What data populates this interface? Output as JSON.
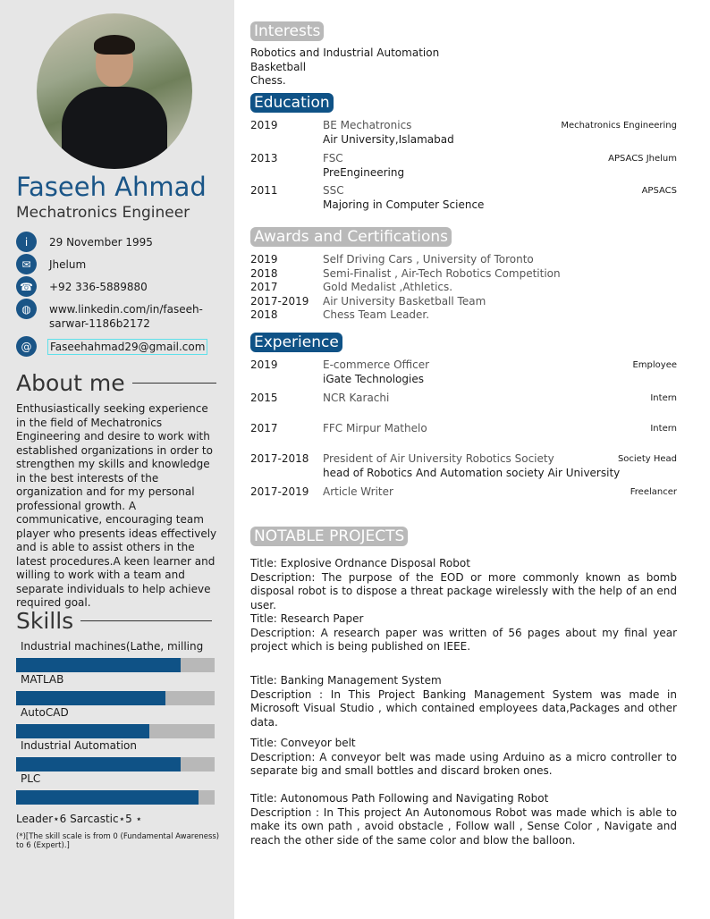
{
  "profile": {
    "name": "Faseeh Ahmad",
    "role": "Mechatronics Engineer"
  },
  "contacts": [
    {
      "icon": "info-icon",
      "glyph": "i",
      "text": "29 November 1995"
    },
    {
      "icon": "envelope-icon",
      "glyph": "✉",
      "text": "Jhelum"
    },
    {
      "icon": "phone-icon",
      "glyph": "☎",
      "text": "+92 336-5889880"
    },
    {
      "icon": "globe-icon",
      "glyph": "◍",
      "text": "www.linkedin.com/in/faseeh-sarwar-1186b2172"
    },
    {
      "icon": "at-icon",
      "glyph": "@",
      "text": "Faseehahmad29@gmail.com"
    }
  ],
  "about": {
    "heading": "About me",
    "text": "Enthusiastically seeking experience in the field of Mechatronics Engineering and desire to work with established organizations in order to strengthen my skills and knowledge in the best interests of the organization and for my personal professional growth. A communicative, encouraging team player who presents ideas effectively and is able to assist others in the latest procedures.A keen learner and willing to work with a team and separate individuals to help achieve required goal."
  },
  "skills": {
    "heading": "Skills",
    "items": [
      {
        "label": "Industrial machines(Lathe, milling",
        "level": 0.83
      },
      {
        "label": "MATLAB",
        "level": 0.75
      },
      {
        "label": "AutoCAD",
        "level": 0.67
      },
      {
        "label": "Industrial Automation",
        "level": 0.83
      },
      {
        "label": "PLC",
        "level": 0.92
      }
    ],
    "traits": "Leader⋆6 Sarcastic⋆5 ⋆",
    "note": "(*)[The skill scale is from 0 (Fundamental Awareness) to 6 (Expert).]"
  },
  "interests": {
    "heading": "Interests",
    "items": [
      "Robotics and Industrial Automation",
      "Basketball",
      "Chess."
    ]
  },
  "education": {
    "heading": "Education",
    "items": [
      {
        "year": "2019",
        "title": "BE Mechatronics",
        "sub": "Air University,Islamabad",
        "right": "Mechatronics Engineering"
      },
      {
        "year": "2013",
        "title": "FSC",
        "sub": "PreEngineering",
        "right": "APSACS Jhelum"
      },
      {
        "year": "2011",
        "title": "SSC",
        "sub": "Majoring in Computer Science",
        "right": "APSACS"
      }
    ]
  },
  "awards": {
    "heading": "Awards and Certifications",
    "items": [
      {
        "year": "2019",
        "title": "Self Driving Cars , University of Toronto"
      },
      {
        "year": "2018",
        "title": "Semi-Finalist , Air-Tech Robotics Competition"
      },
      {
        "year": "2017",
        "title": "Gold Medalist ,Athletics."
      },
      {
        "year": "2017-2019",
        "title": "Air University Basketball Team"
      },
      {
        "year": "2018",
        "title": "Chess Team Leader."
      }
    ]
  },
  "experience": {
    "heading": "Experience",
    "items": [
      {
        "year": "2019",
        "title": "E-commerce Officer",
        "sub": "iGate Technologies",
        "right": "Employee"
      },
      {
        "year": "2015",
        "title": "NCR Karachi",
        "sub": "",
        "right": "Intern"
      },
      {
        "year": "2017",
        "title": "FFC Mirpur Mathelo",
        "sub": "",
        "right": "Intern"
      },
      {
        "year": "2017-2018",
        "title": "President of Air University Robotics Society",
        "sub": "head of Robotics And Automation society Air University",
        "right": "Society Head"
      },
      {
        "year": "2017-2019",
        "title": "Article Writer",
        "sub": "",
        "right": "Freelancer"
      }
    ]
  },
  "projects": {
    "heading": "NOTABLE PROJECTS",
    "items": [
      {
        "title": "Title: Explosive Ordnance Disposal Robot",
        "desc": "Description: The purpose of the EOD or more commonly known as bomb disposal robot is to dispose a threat package wirelessly with the help of an end user."
      },
      {
        "title": "Title: Research Paper",
        "desc": "Description: A research paper was written of 56 pages about my final year project which is being published on IEEE."
      },
      {
        "title": "Title: Banking Management System",
        "desc": "Description : In This Project Banking Management System was made in Microsoft Visual Studio , which contained employees data,Packages and other data."
      },
      {
        "title": "Title: Conveyor belt",
        "desc": "Description: A conveyor belt was made using Arduino as a micro controller to separate big and small bottles and discard broken ones."
      },
      {
        "title": "Title: Autonomous Path Following and Navigating Robot",
        "desc": "Description : In This project An Autonomous Robot was made which is able to make its own path , avoid obstacle , Follow wall , Sense Color , Navigate and reach the other side of the same color and blow the balloon."
      }
    ]
  },
  "colors": {
    "accent": "#0f5286",
    "sidebar": "#e6e6e6",
    "pill_grey": "#b9b9b9",
    "bar_track": "#b8b8b8"
  }
}
